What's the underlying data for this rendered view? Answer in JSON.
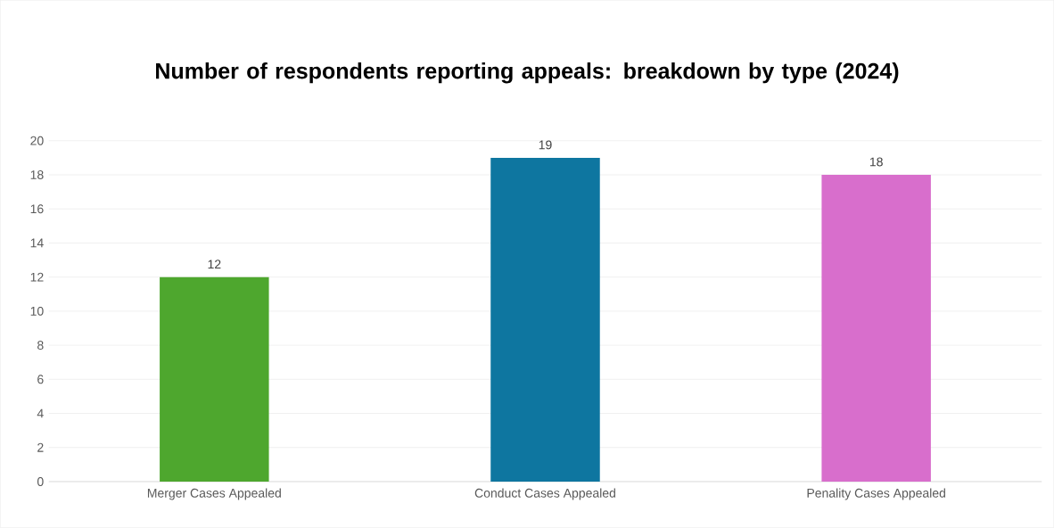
{
  "chart_data": {
    "type": "bar",
    "title": "Number of respondents reporting appeals: breakdown by type (2024)",
    "categories": [
      "Merger Cases Appealed",
      "Conduct Cases Appealed",
      "Penality Cases Appealed"
    ],
    "values": [
      12,
      19,
      18
    ],
    "colors": [
      "#4ea72e",
      "#0e76a0",
      "#d86ecc"
    ],
    "ylim": [
      0,
      20
    ],
    "yticks": [
      0,
      2,
      4,
      6,
      8,
      10,
      12,
      14,
      16,
      18,
      20
    ],
    "grid": "y",
    "data_labels": true
  }
}
